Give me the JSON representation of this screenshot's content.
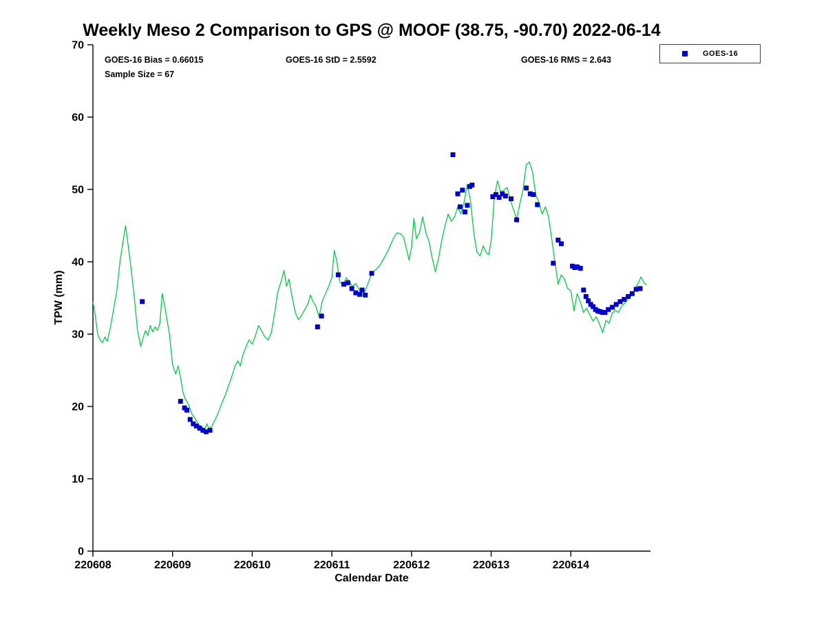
{
  "chart_data": {
    "type": "line",
    "title": "Weekly Meso 2 Comparison to GPS @ MOOF (38.75, -90.70) 2022-06-14",
    "xlabel": "Calendar Date",
    "ylabel": "TPW (mm)",
    "xlim": [
      220608,
      220615
    ],
    "ylim": [
      0,
      70
    ],
    "xticks": [
      "220608",
      "220609",
      "220610",
      "220611",
      "220612",
      "220613",
      "220614"
    ],
    "yticks": [
      "0",
      "10",
      "20",
      "30",
      "40",
      "50",
      "60",
      "70"
    ],
    "grid": false,
    "legend": [
      "GOES-16"
    ],
    "legend_position": "outside-top-right",
    "annotations": {
      "bias": "GOES-16 Bias = 0.66015",
      "std": "GOES-16 StD = 2.5592",
      "rms": "GOES-16 RMS = 2.643",
      "sample_size": "Sample Size = 67"
    },
    "colors": {
      "gps_line": "#00CC44",
      "goes16_marker": "#0000CC"
    },
    "series": [
      {
        "name": "GPS",
        "type": "line",
        "color": "#00CC44",
        "points": [
          [
            220608.0,
            34.5
          ],
          [
            220608.03,
            32.5
          ],
          [
            220608.06,
            30.0
          ],
          [
            220608.09,
            29.2
          ],
          [
            220608.12,
            28.8
          ],
          [
            220608.15,
            29.6
          ],
          [
            220608.18,
            29.0
          ],
          [
            220608.22,
            31.0
          ],
          [
            220608.26,
            33.5
          ],
          [
            220608.3,
            36.0
          ],
          [
            220608.34,
            40.0
          ],
          [
            220608.38,
            43.0
          ],
          [
            220608.41,
            45.0
          ],
          [
            220608.44,
            42.5
          ],
          [
            220608.48,
            39.0
          ],
          [
            220608.52,
            35.0
          ],
          [
            220608.56,
            30.5
          ],
          [
            220608.6,
            28.3
          ],
          [
            220608.63,
            29.5
          ],
          [
            220608.66,
            30.5
          ],
          [
            220608.69,
            29.8
          ],
          [
            220608.72,
            31.2
          ],
          [
            220608.75,
            30.3
          ],
          [
            220608.78,
            31.0
          ],
          [
            220608.81,
            30.5
          ],
          [
            220608.84,
            31.5
          ],
          [
            220608.87,
            35.6
          ],
          [
            220608.9,
            34.0
          ],
          [
            220608.93,
            32.0
          ],
          [
            220608.96,
            30.0
          ],
          [
            220609.0,
            25.8
          ],
          [
            220609.04,
            24.5
          ],
          [
            220609.07,
            25.6
          ],
          [
            220609.1,
            24.0
          ],
          [
            220609.13,
            22.0
          ],
          [
            220609.16,
            21.0
          ],
          [
            220609.2,
            20.3
          ],
          [
            220609.24,
            19.0
          ],
          [
            220609.28,
            18.4
          ],
          [
            220609.32,
            17.6
          ],
          [
            220609.36,
            17.2
          ],
          [
            220609.4,
            16.8
          ],
          [
            220609.43,
            17.6
          ],
          [
            220609.46,
            16.9
          ],
          [
            220609.5,
            17.4
          ],
          [
            220609.54,
            18.3
          ],
          [
            220609.58,
            19.3
          ],
          [
            220609.62,
            20.5
          ],
          [
            220609.66,
            21.5
          ],
          [
            220609.7,
            22.8
          ],
          [
            220609.74,
            24.0
          ],
          [
            220609.78,
            25.5
          ],
          [
            220609.82,
            26.3
          ],
          [
            220609.85,
            25.6
          ],
          [
            220609.88,
            27.0
          ],
          [
            220609.92,
            28.2
          ],
          [
            220609.96,
            29.2
          ],
          [
            220610.0,
            28.6
          ],
          [
            220610.04,
            29.8
          ],
          [
            220610.08,
            31.2
          ],
          [
            220610.12,
            30.4
          ],
          [
            220610.16,
            29.6
          ],
          [
            220610.2,
            29.2
          ],
          [
            220610.24,
            30.2
          ],
          [
            220610.28,
            32.8
          ],
          [
            220610.32,
            35.8
          ],
          [
            220610.36,
            37.2
          ],
          [
            220610.4,
            38.8
          ],
          [
            220610.43,
            36.6
          ],
          [
            220610.46,
            37.6
          ],
          [
            220610.5,
            35.2
          ],
          [
            220610.54,
            33.0
          ],
          [
            220610.58,
            32.0
          ],
          [
            220610.62,
            32.6
          ],
          [
            220610.66,
            33.4
          ],
          [
            220610.7,
            34.2
          ],
          [
            220610.73,
            35.4
          ],
          [
            220610.76,
            34.6
          ],
          [
            220610.8,
            33.8
          ],
          [
            220610.84,
            32.4
          ],
          [
            220610.88,
            34.6
          ],
          [
            220610.92,
            35.6
          ],
          [
            220610.96,
            36.6
          ],
          [
            220611.0,
            37.8
          ],
          [
            220611.03,
            41.6
          ],
          [
            220611.06,
            40.2
          ],
          [
            220611.1,
            37.2
          ],
          [
            220611.14,
            36.8
          ],
          [
            220611.18,
            37.8
          ],
          [
            220611.22,
            37.2
          ],
          [
            220611.26,
            36.6
          ],
          [
            220611.3,
            37.0
          ],
          [
            220611.34,
            36.2
          ],
          [
            220611.38,
            35.4
          ],
          [
            220611.42,
            36.0
          ],
          [
            220611.46,
            37.2
          ],
          [
            220611.5,
            38.4
          ],
          [
            220611.54,
            38.8
          ],
          [
            220611.58,
            39.2
          ],
          [
            220611.62,
            39.8
          ],
          [
            220611.66,
            40.6
          ],
          [
            220611.7,
            41.4
          ],
          [
            220611.74,
            42.4
          ],
          [
            220611.78,
            43.4
          ],
          [
            220611.82,
            44.0
          ],
          [
            220611.86,
            43.9
          ],
          [
            220611.9,
            43.4
          ],
          [
            220611.94,
            41.6
          ],
          [
            220611.97,
            40.2
          ],
          [
            220612.0,
            42.0
          ],
          [
            220612.03,
            46.0
          ],
          [
            220612.06,
            43.2
          ],
          [
            220612.1,
            44.0
          ],
          [
            220612.14,
            46.2
          ],
          [
            220612.18,
            44.0
          ],
          [
            220612.22,
            42.8
          ],
          [
            220612.26,
            40.5
          ],
          [
            220612.3,
            38.6
          ],
          [
            220612.34,
            40.5
          ],
          [
            220612.38,
            43.0
          ],
          [
            220612.42,
            45.0
          ],
          [
            220612.46,
            46.6
          ],
          [
            220612.5,
            45.6
          ],
          [
            220612.54,
            46.2
          ],
          [
            220612.58,
            47.6
          ],
          [
            220612.62,
            46.6
          ],
          [
            220612.66,
            48.2
          ],
          [
            220612.7,
            50.7
          ],
          [
            220612.74,
            48.5
          ],
          [
            220612.78,
            44.2
          ],
          [
            220612.82,
            41.4
          ],
          [
            220612.86,
            40.8
          ],
          [
            220612.9,
            42.2
          ],
          [
            220612.94,
            41.2
          ],
          [
            220612.97,
            41.0
          ],
          [
            220613.0,
            43.0
          ],
          [
            220613.04,
            49.0
          ],
          [
            220613.08,
            51.2
          ],
          [
            220613.12,
            49.6
          ],
          [
            220613.16,
            49.9
          ],
          [
            220613.2,
            50.3
          ],
          [
            220613.24,
            48.6
          ],
          [
            220613.28,
            47.2
          ],
          [
            220613.32,
            45.9
          ],
          [
            220613.36,
            48.0
          ],
          [
            220613.4,
            50.0
          ],
          [
            220613.44,
            53.4
          ],
          [
            220613.48,
            53.8
          ],
          [
            220613.52,
            52.4
          ],
          [
            220613.56,
            49.2
          ],
          [
            220613.6,
            48.2
          ],
          [
            220613.64,
            46.6
          ],
          [
            220613.68,
            47.6
          ],
          [
            220613.72,
            46.2
          ],
          [
            220613.76,
            43.2
          ],
          [
            220613.8,
            40.0
          ],
          [
            220613.84,
            36.9
          ],
          [
            220613.88,
            38.2
          ],
          [
            220613.92,
            37.6
          ],
          [
            220613.96,
            36.3
          ],
          [
            220614.0,
            36.0
          ],
          [
            220614.04,
            33.2
          ],
          [
            220614.08,
            35.6
          ],
          [
            220614.12,
            34.4
          ],
          [
            220614.16,
            33.0
          ],
          [
            220614.2,
            33.6
          ],
          [
            220614.24,
            32.6
          ],
          [
            220614.28,
            31.8
          ],
          [
            220614.32,
            32.4
          ],
          [
            220614.36,
            31.4
          ],
          [
            220614.4,
            30.2
          ],
          [
            220614.44,
            31.9
          ],
          [
            220614.48,
            31.5
          ],
          [
            220614.52,
            32.9
          ],
          [
            220614.56,
            33.3
          ],
          [
            220614.6,
            33.0
          ],
          [
            220614.64,
            33.9
          ],
          [
            220614.68,
            34.3
          ],
          [
            220614.72,
            34.9
          ],
          [
            220614.76,
            35.3
          ],
          [
            220614.8,
            36.1
          ],
          [
            220614.84,
            36.9
          ],
          [
            220614.88,
            37.9
          ],
          [
            220614.92,
            37.1
          ],
          [
            220614.95,
            36.8
          ]
        ]
      },
      {
        "name": "GOES-16",
        "type": "scatter",
        "marker": "square",
        "color": "#0000CC",
        "points": [
          [
            220608.62,
            34.5
          ],
          [
            220609.1,
            20.7
          ],
          [
            220609.15,
            19.8
          ],
          [
            220609.18,
            19.5
          ],
          [
            220609.22,
            18.2
          ],
          [
            220609.26,
            17.6
          ],
          [
            220609.3,
            17.3
          ],
          [
            220609.34,
            17.0
          ],
          [
            220609.38,
            16.7
          ],
          [
            220609.42,
            16.5
          ],
          [
            220609.47,
            16.7
          ],
          [
            220610.82,
            31.0
          ],
          [
            220610.87,
            32.5
          ],
          [
            220611.08,
            38.2
          ],
          [
            220611.15,
            36.9
          ],
          [
            220611.2,
            37.1
          ],
          [
            220611.25,
            36.3
          ],
          [
            220611.3,
            35.7
          ],
          [
            220611.35,
            35.5
          ],
          [
            220611.38,
            36.1
          ],
          [
            220611.42,
            35.4
          ],
          [
            220611.5,
            38.4
          ],
          [
            220612.52,
            54.8
          ],
          [
            220612.58,
            49.4
          ],
          [
            220612.61,
            47.6
          ],
          [
            220612.64,
            49.9
          ],
          [
            220612.67,
            46.9
          ],
          [
            220612.7,
            47.8
          ],
          [
            220612.73,
            50.4
          ],
          [
            220612.76,
            50.6
          ],
          [
            220613.02,
            49.0
          ],
          [
            220613.06,
            49.3
          ],
          [
            220613.1,
            48.9
          ],
          [
            220613.14,
            49.4
          ],
          [
            220613.18,
            49.1
          ],
          [
            220613.25,
            48.7
          ],
          [
            220613.32,
            45.8
          ],
          [
            220613.44,
            50.2
          ],
          [
            220613.49,
            49.4
          ],
          [
            220613.53,
            49.3
          ],
          [
            220613.58,
            47.9
          ],
          [
            220613.78,
            39.8
          ],
          [
            220613.84,
            43.0
          ],
          [
            220613.88,
            42.5
          ],
          [
            220614.02,
            39.4
          ],
          [
            220614.05,
            39.2
          ],
          [
            220614.08,
            39.3
          ],
          [
            220614.12,
            39.1
          ],
          [
            220614.16,
            36.1
          ],
          [
            220614.19,
            35.2
          ],
          [
            220614.22,
            34.6
          ],
          [
            220614.25,
            34.1
          ],
          [
            220614.28,
            33.8
          ],
          [
            220614.31,
            33.4
          ],
          [
            220614.34,
            33.2
          ],
          [
            220614.37,
            33.1
          ],
          [
            220614.4,
            33.0
          ],
          [
            220614.43,
            33.0
          ],
          [
            220614.47,
            33.4
          ],
          [
            220614.52,
            33.7
          ],
          [
            220614.57,
            34.1
          ],
          [
            220614.62,
            34.5
          ],
          [
            220614.67,
            34.8
          ],
          [
            220614.72,
            35.2
          ],
          [
            220614.77,
            35.6
          ],
          [
            220614.82,
            36.2
          ],
          [
            220614.87,
            36.3
          ]
        ]
      }
    ]
  }
}
